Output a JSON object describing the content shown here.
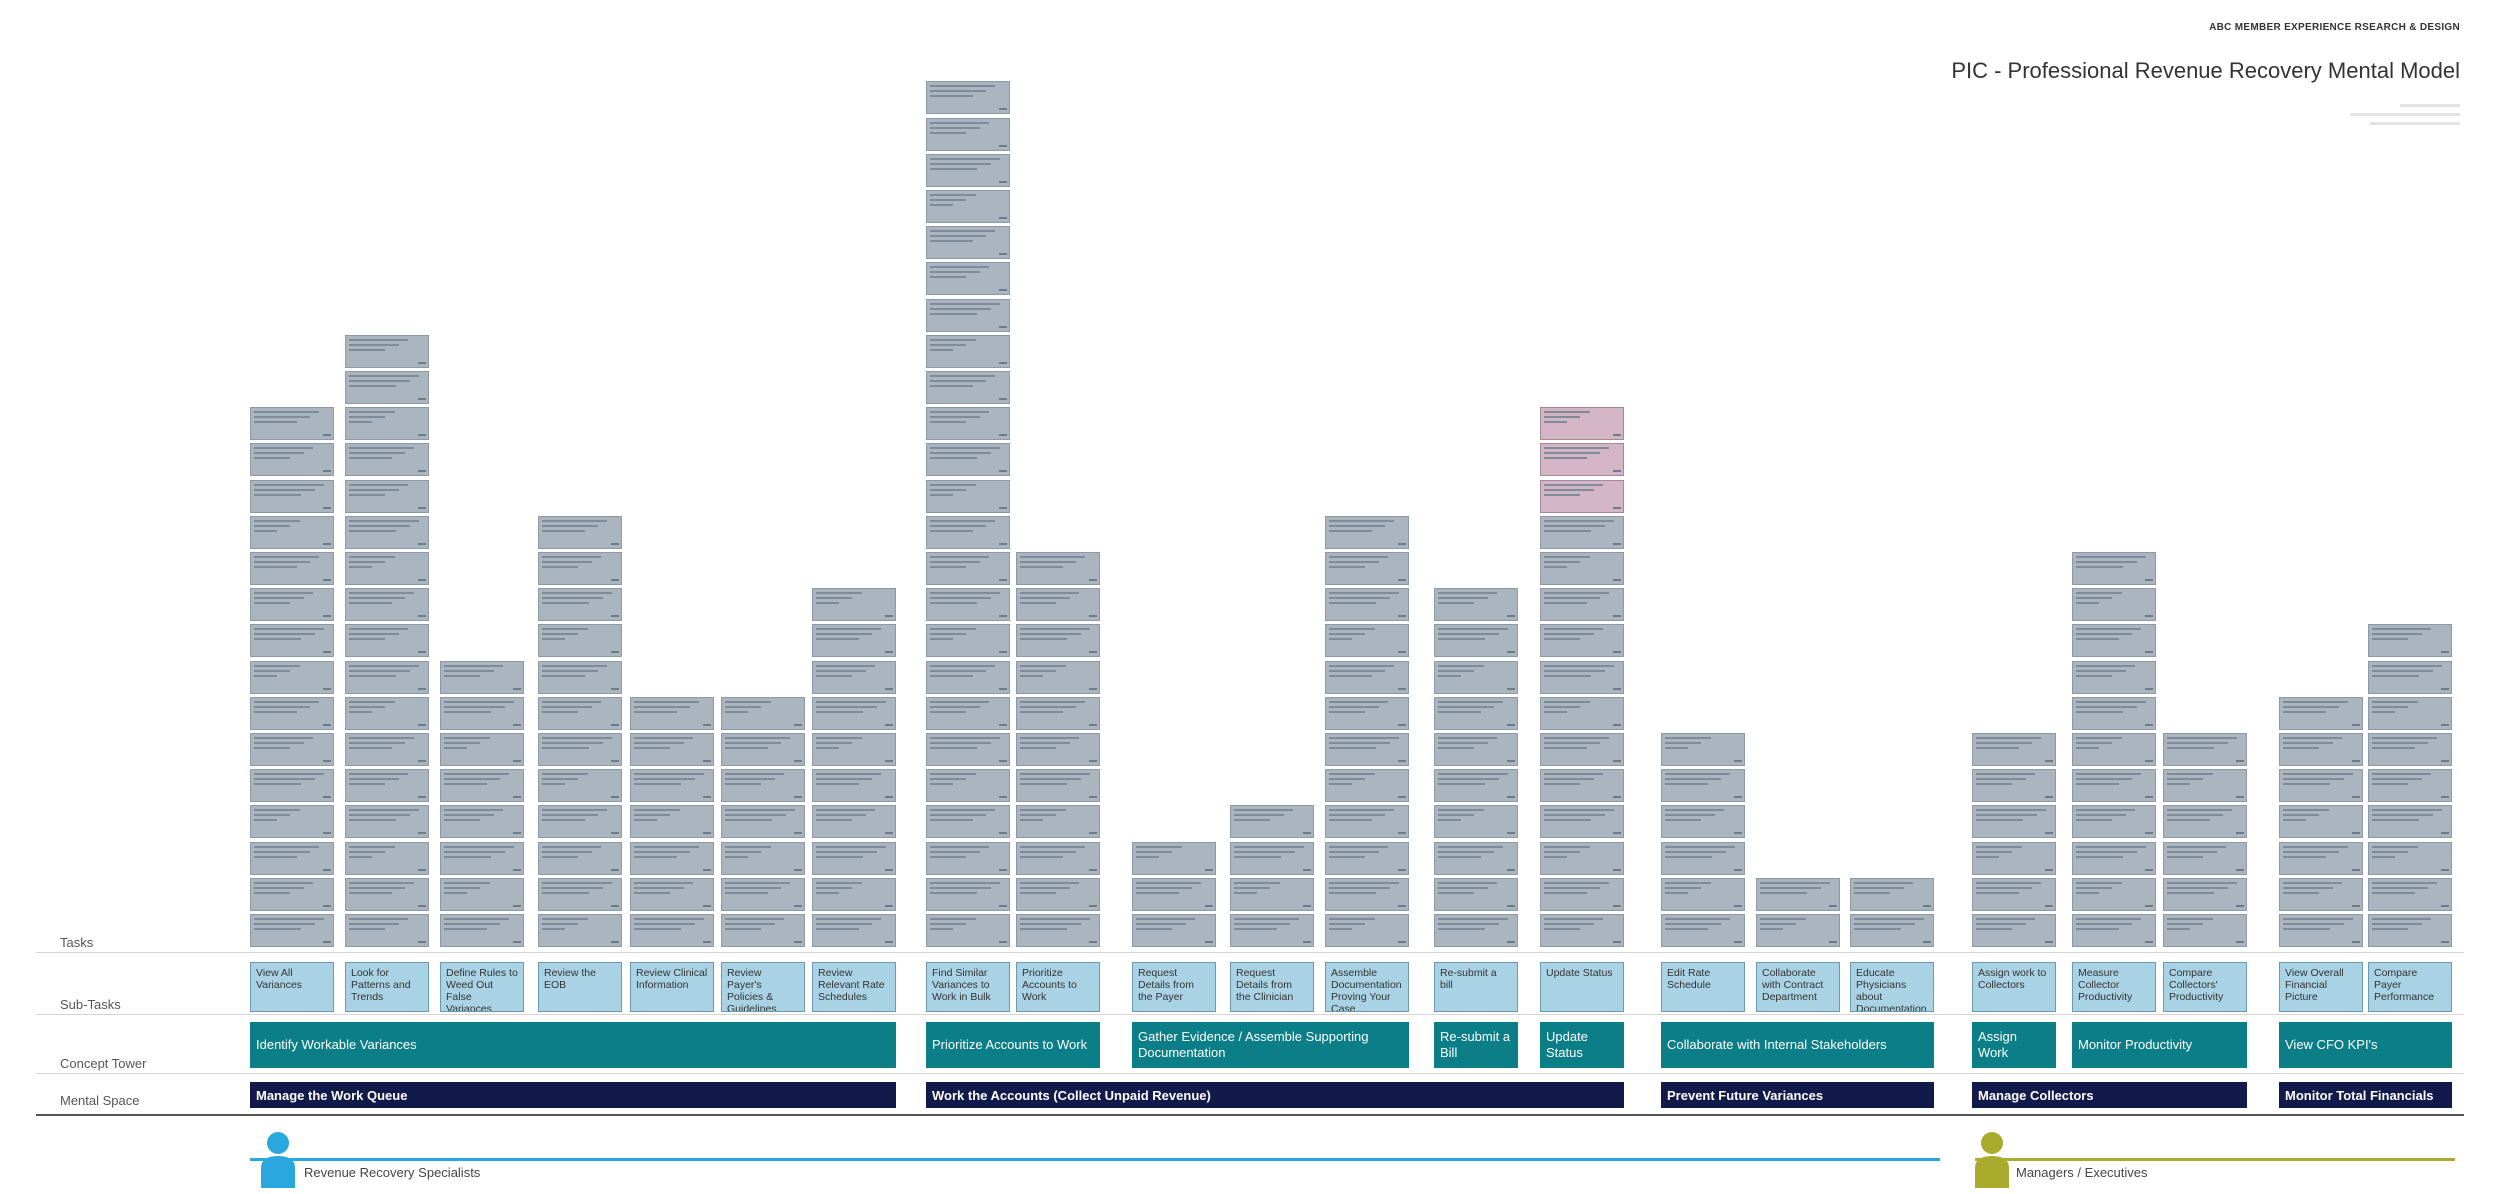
{
  "header": {
    "brand": "ABC MEMBER EXPERIENCE RSEARCH & DESIGN",
    "title": "PIC - Professional Revenue Recovery Mental Model"
  },
  "row_labels": {
    "tasks": "Tasks",
    "subtasks": "Sub-Tasks",
    "concept_tower": "Concept Tower",
    "mental_space": "Mental Space"
  },
  "mental_spaces": [
    "Manage the Work Queue",
    "Work the Accounts (Collect Unpaid Revenue)",
    "Prevent Future Variances",
    "Manage Collectors",
    "Monitor Total Financials"
  ],
  "concept_towers": [
    "Identify Workable Variances",
    "Prioritize Accounts to Work",
    "Gather Evidence / Assemble Supporting Documentation",
    "Re-submit a Bill",
    "Update Status",
    "Collaborate with Internal Stakeholders",
    "Assign Work",
    "Monitor Productivity",
    "View CFO KPI's"
  ],
  "subtasks": [
    "View All Variances",
    "Look for Patterns and Trends",
    "Define Rules to Weed Out False Variances",
    "Review the EOB",
    "Review Clinical Information",
    "Review Payer's Policies & Guidelines",
    "Review Relevant Rate Schedules",
    "Find Similar Variances to Work in Bulk",
    "Prioritize Accounts to Work",
    "Request Details from the Payer",
    "Request Details from the Clinician",
    "Assemble Documentation Proving Your Case",
    "Re-submit a bill",
    "Update Status",
    "Edit Rate Schedule",
    "Collaborate with Contract Department",
    "Educate Physicians about Documentation Guidelines",
    "Assign work to Collectors",
    "Measure Collector Productivity",
    "Compare Collectors' Productivity",
    "View Overall Financial Picture",
    "Compare Payer Performance"
  ],
  "personas": {
    "specialists": "Revenue Recovery Specialists",
    "managers": "Managers / Executives"
  },
  "colors": {
    "task_card": "#aab5c0",
    "task_card_highlight": "#d3b5c6",
    "subtask": "#a9d3e5",
    "concept_tower": "#0c7e87",
    "mental_space": "#111a4a",
    "specialists_line": "#2aa7dd",
    "managers_line": "#a9ab2c"
  }
}
